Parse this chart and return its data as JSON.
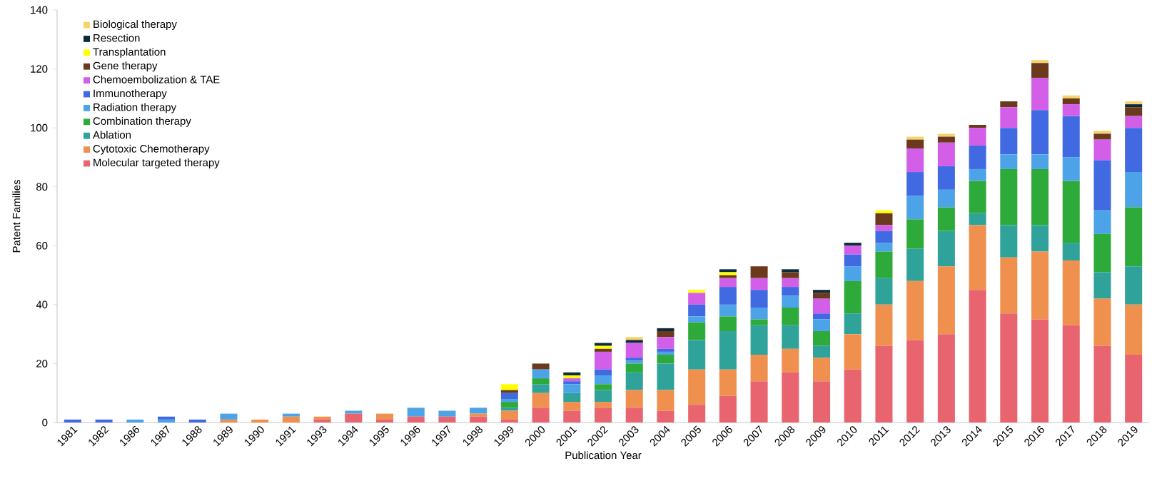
{
  "chart_data": {
    "type": "bar",
    "stacked": true,
    "xlabel": "Publication Year",
    "ylabel": "Patent Families",
    "categories": [
      "1981",
      "1982",
      "1986",
      "1987",
      "1988",
      "1989",
      "1990",
      "1991",
      "1993",
      "1994",
      "1995",
      "1996",
      "1997",
      "1998",
      "1999",
      "2000",
      "2001",
      "2002",
      "2003",
      "2004",
      "2005",
      "2006",
      "2007",
      "2008",
      "2009",
      "2010",
      "2011",
      "2012",
      "2013",
      "2014",
      "2015",
      "2016",
      "2017",
      "2018",
      "2019"
    ],
    "ylim": [
      0,
      140
    ],
    "yticks": [
      0,
      20,
      40,
      60,
      80,
      100,
      120,
      140
    ],
    "legend": "top left",
    "series": [
      {
        "name": "Molecular targeted therapy",
        "color": "#e8646f",
        "values": [
          0,
          0,
          0,
          0,
          0,
          0,
          0,
          0,
          1,
          3,
          1,
          2,
          2,
          2,
          1,
          5,
          4,
          5,
          5,
          4,
          6,
          9,
          14,
          17,
          14,
          18,
          26,
          28,
          30,
          45,
          37,
          35,
          33,
          26,
          23
        ]
      },
      {
        "name": "Cytotoxic Chemotherapy",
        "color": "#f0904f",
        "values": [
          0,
          0,
          0,
          0,
          0,
          1,
          1,
          2,
          1,
          0,
          2,
          0,
          0,
          1,
          3,
          5,
          3,
          2,
          6,
          7,
          12,
          9,
          9,
          8,
          8,
          12,
          14,
          20,
          23,
          22,
          19,
          23,
          22,
          16,
          17
        ]
      },
      {
        "name": "Ablation",
        "color": "#2fa29a",
        "values": [
          0,
          0,
          0,
          0,
          0,
          0,
          0,
          0,
          0,
          0,
          0,
          0,
          0,
          0,
          1,
          3,
          3,
          4,
          6,
          9,
          10,
          13,
          10,
          8,
          4,
          7,
          9,
          11,
          12,
          4,
          11,
          9,
          6,
          9,
          13
        ]
      },
      {
        "name": "Combination therapy",
        "color": "#2eaa3a",
        "values": [
          0,
          0,
          0,
          0,
          0,
          0,
          0,
          0,
          0,
          0,
          0,
          0,
          0,
          0,
          2,
          2,
          0,
          2,
          3,
          3,
          6,
          5,
          2,
          6,
          5,
          11,
          9,
          10,
          8,
          11,
          19,
          19,
          21,
          13,
          20
        ]
      },
      {
        "name": "Radiation therapy",
        "color": "#4da3e8",
        "values": [
          0,
          0,
          1,
          1,
          0,
          2,
          0,
          1,
          0,
          1,
          0,
          3,
          2,
          2,
          1,
          3,
          3,
          3,
          1,
          1,
          2,
          4,
          4,
          4,
          4,
          5,
          3,
          8,
          6,
          4,
          5,
          5,
          8,
          8,
          12
        ]
      },
      {
        "name": "Immunotherapy",
        "color": "#4169e1",
        "values": [
          1,
          1,
          0,
          1,
          1,
          0,
          0,
          0,
          0,
          0,
          0,
          0,
          0,
          0,
          2,
          0,
          1,
          2,
          1,
          1,
          4,
          6,
          6,
          3,
          2,
          4,
          4,
          8,
          8,
          8,
          9,
          15,
          14,
          17,
          15
        ]
      },
      {
        "name": "Chemoembolization & TAE",
        "color": "#d35fe8",
        "values": [
          0,
          0,
          0,
          0,
          0,
          0,
          0,
          0,
          0,
          0,
          0,
          0,
          0,
          0,
          0,
          0,
          1,
          6,
          5,
          4,
          4,
          3,
          4,
          3,
          5,
          3,
          2,
          8,
          8,
          6,
          7,
          11,
          4,
          7,
          4
        ]
      },
      {
        "name": "Gene therapy",
        "color": "#6b3a1e",
        "values": [
          0,
          0,
          0,
          0,
          0,
          0,
          0,
          0,
          0,
          0,
          0,
          0,
          0,
          0,
          1,
          2,
          0,
          1,
          0,
          2,
          0,
          1,
          4,
          2,
          2,
          0,
          4,
          3,
          2,
          1,
          2,
          5,
          2,
          2,
          3
        ]
      },
      {
        "name": "Transplantation",
        "color": "#ffff00",
        "values": [
          0,
          0,
          0,
          0,
          0,
          0,
          0,
          0,
          0,
          0,
          0,
          0,
          0,
          0,
          2,
          0,
          1,
          1,
          0,
          0,
          1,
          1,
          0,
          0,
          0,
          0,
          1,
          0,
          0,
          0,
          0,
          0,
          0,
          0,
          0
        ]
      },
      {
        "name": "Resection",
        "color": "#0b2a3a",
        "values": [
          0,
          0,
          0,
          0,
          0,
          0,
          0,
          0,
          0,
          0,
          0,
          0,
          0,
          0,
          0,
          0,
          1,
          1,
          1,
          1,
          0,
          1,
          0,
          1,
          1,
          1,
          0,
          0,
          0,
          0,
          0,
          0,
          0,
          0,
          1
        ]
      },
      {
        "name": "Biological therapy",
        "color": "#f6d36b",
        "values": [
          0,
          0,
          0,
          0,
          0,
          0,
          0,
          0,
          0,
          0,
          0,
          0,
          0,
          0,
          0,
          0,
          0,
          0,
          1,
          0,
          0,
          0,
          0,
          0,
          0,
          0,
          0,
          1,
          1,
          0,
          0,
          1,
          1,
          1,
          1
        ]
      }
    ]
  }
}
